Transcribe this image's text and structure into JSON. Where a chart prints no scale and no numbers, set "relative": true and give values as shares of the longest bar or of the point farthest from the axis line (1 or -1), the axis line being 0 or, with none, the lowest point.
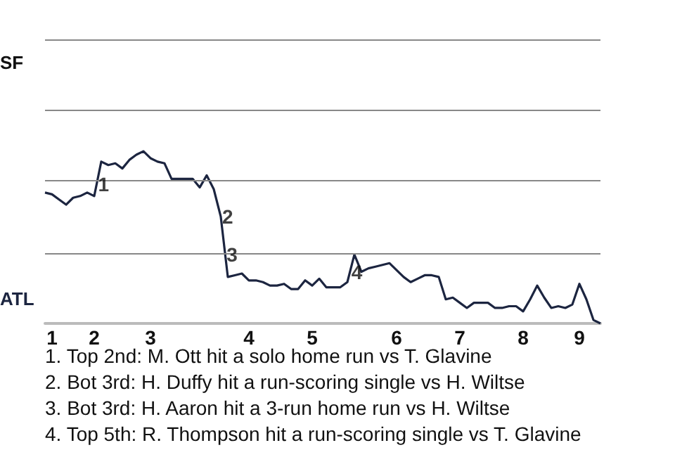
{
  "chart_data": {
    "type": "line",
    "relative": true,
    "categories": [
      null,
      "1",
      null,
      null,
      null,
      null,
      null,
      "2",
      null,
      null,
      null,
      null,
      null,
      null,
      null,
      "3",
      null,
      null,
      null,
      null,
      null,
      null,
      null,
      null,
      null,
      null,
      null,
      null,
      null,
      "4",
      null,
      null,
      null,
      null,
      null,
      null,
      null,
      null,
      "5",
      null,
      null,
      null,
      null,
      null,
      null,
      null,
      null,
      null,
      null,
      null,
      "6",
      null,
      null,
      null,
      null,
      null,
      null,
      null,
      null,
      "7",
      null,
      null,
      null,
      null,
      null,
      null,
      null,
      null,
      "8",
      null,
      null,
      null,
      null,
      null,
      null,
      null,
      "9",
      null,
      null,
      null
    ],
    "series": [
      {
        "color": "#1c2540",
        "values": [
          0.76,
          0.75,
          0.72,
          0.69,
          0.73,
          0.74,
          0.76,
          0.74,
          0.94,
          0.92,
          0.93,
          0.9,
          0.95,
          0.98,
          1,
          0.96,
          0.94,
          0.93,
          0.84,
          0.84,
          0.84,
          0.84,
          0.79,
          0.86,
          0.78,
          0.62,
          0.27,
          0.28,
          0.29,
          0.25,
          0.25,
          0.24,
          0.22,
          0.22,
          0.23,
          0.2,
          0.2,
          0.25,
          0.22,
          0.26,
          0.21,
          0.21,
          0.21,
          0.24,
          0.4,
          0.3,
          0.32,
          0.33,
          0.34,
          0.35,
          0.31,
          0.27,
          0.24,
          0.26,
          0.28,
          0.28,
          0.27,
          0.14,
          0.15,
          0.12,
          0.09,
          0.12,
          0.12,
          0.12,
          0.09,
          0.09,
          0.1,
          0.1,
          0.07,
          0.14,
          0.22,
          0.15,
          0.09,
          0.1,
          0.09,
          0.11,
          0.23,
          0.14,
          0.02,
          0
        ]
      }
    ],
    "marker": "none",
    "line_style": "solid",
    "ref_lines": [
      {
        "axis": "y",
        "value": 0.41,
        "color": "#888888"
      },
      {
        "axis": "y",
        "value": 0.83,
        "color": "#888888"
      },
      {
        "axis": "y",
        "value": 1.24,
        "color": "#888888"
      },
      {
        "axis": "y",
        "value": 1.65,
        "color": "#888888"
      }
    ],
    "annotations": [
      "SF",
      "ATL",
      {
        "text": "1",
        "y": 0.81
      },
      {
        "text": "2",
        "y": 0.62
      },
      {
        "text": "3",
        "y": 0.4
      },
      {
        "text": "4",
        "y": 0.3
      },
      "1. Top 2nd: M. Ott hit a solo home run vs T. Glavine",
      "2. Bot 3rd: H. Duffy hit a run-scoring single vs H. Wiltse",
      "3. Bot 3rd: H. Aaron hit a 3-run home run vs H. Wiltse",
      "4. Top 5th: R. Thompson hit a run-scoring single vs T. Glavine"
    ]
  }
}
